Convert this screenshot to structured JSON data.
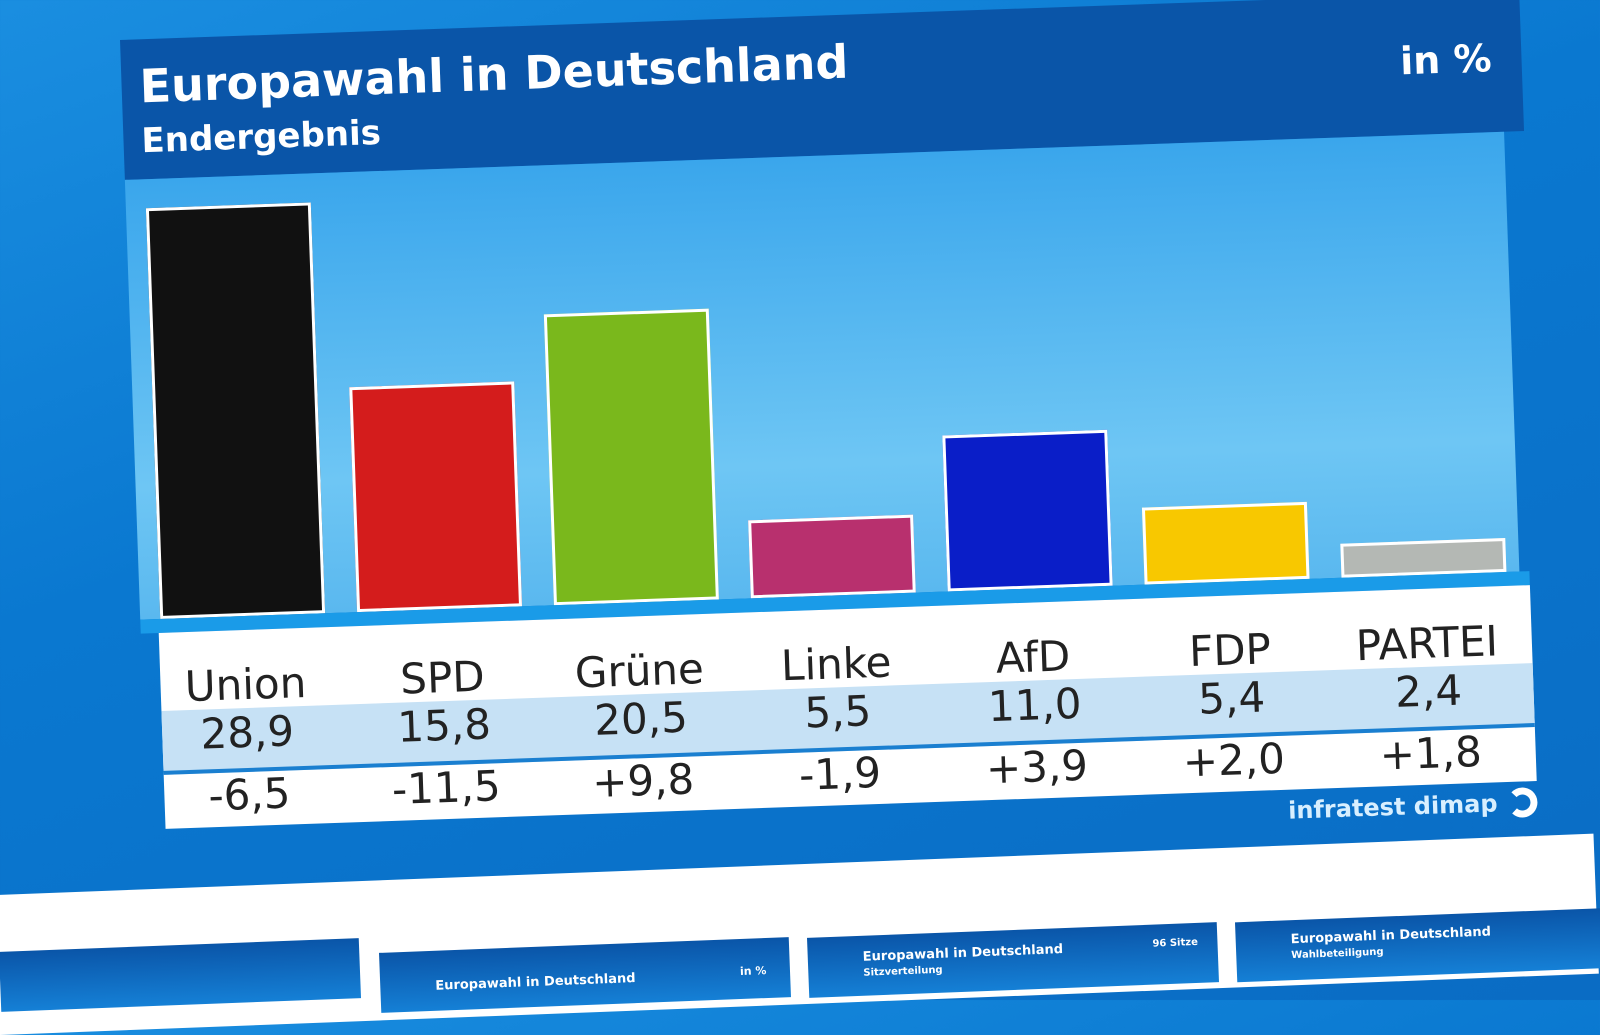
{
  "chart_data": {
    "type": "bar",
    "title": "Europawahl in Deutschland",
    "subtitle": "Endergebnis",
    "unit": "in %",
    "categories": [
      "Union",
      "SPD",
      "Grüne",
      "Linke",
      "AfD",
      "FDP",
      "PARTEI"
    ],
    "values": [
      28.9,
      15.8,
      20.5,
      5.5,
      11.0,
      5.4,
      2.4
    ],
    "value_labels": [
      "28,9",
      "15,8",
      "20,5",
      "5,5",
      "11,0",
      "5,4",
      "2,4"
    ],
    "changes": [
      "-6,5",
      "-11,5",
      "+9,8",
      "-1,9",
      "+3,9",
      "+2,0",
      "+1,8"
    ],
    "colors": [
      "#111111",
      "#d41c1c",
      "#7ab81c",
      "#b8306e",
      "#0a1ec8",
      "#f8c800",
      "#b4b8b4"
    ],
    "ylim": [
      0,
      30
    ],
    "grid": false
  },
  "source": "infratest dimap",
  "thumbnails": [
    {
      "title": "",
      "subtitle": "",
      "extra": ""
    },
    {
      "title": "Europawahl in Deutschland",
      "subtitle": "",
      "extra": "in %"
    },
    {
      "title": "Europawahl in Deutschland",
      "subtitle": "Sitzverteilung",
      "extra": "96 Sitze"
    },
    {
      "title": "Europawahl in Deutschland",
      "subtitle": "Wahlbeteiligung",
      "extra": ""
    }
  ]
}
